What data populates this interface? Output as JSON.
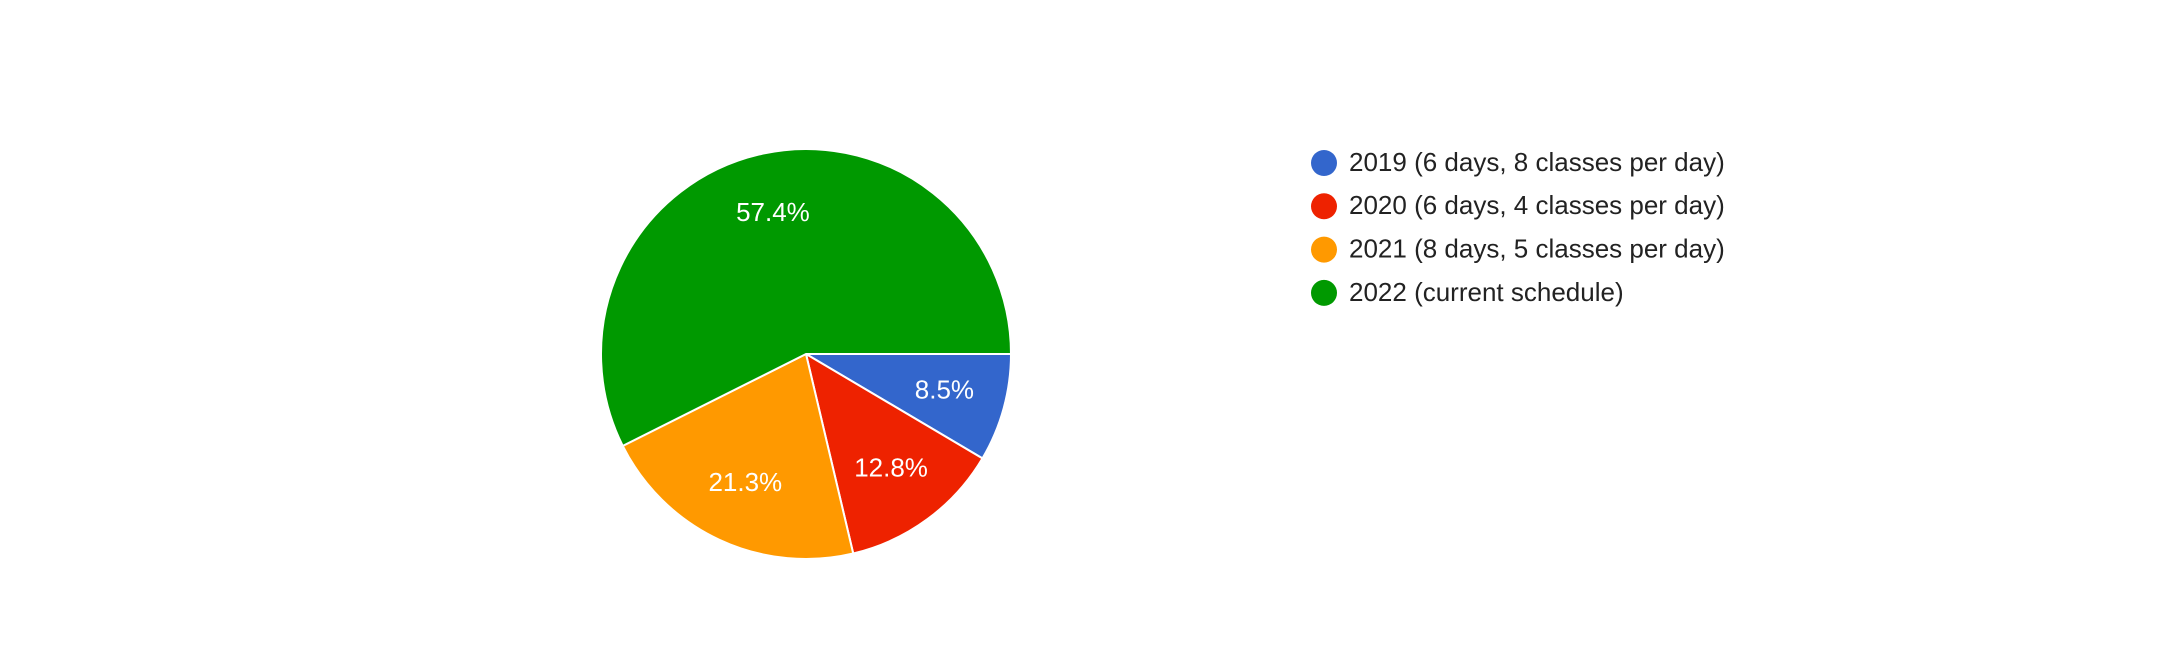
{
  "chart_data": {
    "type": "pie",
    "categories": [
      "2019 (6 days, 8 classes per day)",
      "2020 (6 days, 4 classes per day)",
      "2021 (8 days, 5 classes per day)",
      "2022 (current schedule)"
    ],
    "values": [
      8.5,
      12.8,
      21.3,
      57.4
    ],
    "value_labels": [
      "8.5%",
      "12.8%",
      "21.3%",
      "57.4%"
    ],
    "colors": [
      "#3366cc",
      "#ee2200",
      "#ff9900",
      "#009900"
    ],
    "legend": "right"
  }
}
